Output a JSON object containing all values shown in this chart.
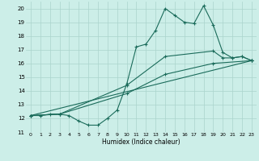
{
  "xlabel": "Humidex (Indice chaleur)",
  "xlim": [
    -0.5,
    23.5
  ],
  "ylim": [
    11,
    20.5
  ],
  "yticks": [
    11,
    12,
    13,
    14,
    15,
    16,
    17,
    18,
    19,
    20
  ],
  "xticks": [
    0,
    1,
    2,
    3,
    4,
    5,
    6,
    7,
    8,
    9,
    10,
    11,
    12,
    13,
    14,
    15,
    16,
    17,
    18,
    19,
    20,
    21,
    22,
    23
  ],
  "bg_color": "#cceee8",
  "line_color": "#1a6b5a",
  "grid_color": "#aad4cc",
  "lines": [
    {
      "x": [
        0,
        1,
        2,
        3,
        4,
        5,
        6,
        7,
        8,
        9,
        10,
        11,
        12,
        13,
        14,
        15,
        16,
        17,
        18,
        19,
        20,
        21,
        22,
        23
      ],
      "y": [
        12.2,
        12.2,
        12.3,
        12.3,
        12.2,
        11.8,
        11.5,
        11.5,
        12.0,
        12.6,
        14.5,
        17.2,
        17.4,
        18.4,
        20.0,
        19.5,
        19.0,
        18.9,
        20.2,
        18.8,
        16.8,
        16.4,
        16.5,
        16.2
      ]
    },
    {
      "x": [
        0,
        3,
        10,
        14,
        19,
        20,
        21,
        22,
        23
      ],
      "y": [
        12.2,
        12.3,
        14.4,
        16.5,
        16.9,
        16.4,
        16.4,
        16.5,
        16.2
      ]
    },
    {
      "x": [
        0,
        3,
        10,
        14,
        19,
        23
      ],
      "y": [
        12.2,
        12.3,
        13.8,
        15.2,
        16.0,
        16.2
      ]
    },
    {
      "x": [
        0,
        23
      ],
      "y": [
        12.2,
        16.2
      ]
    }
  ]
}
